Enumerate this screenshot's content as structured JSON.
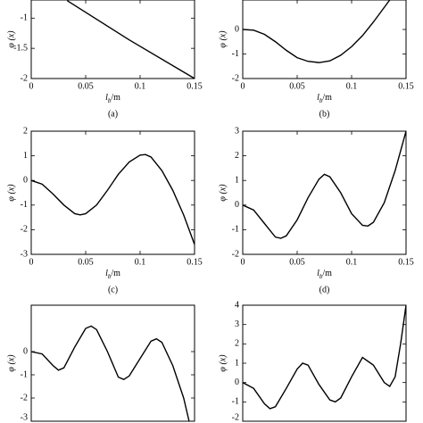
{
  "chart_data": [
    {
      "type": "line",
      "caption": "(a)",
      "ylabel": "φ (x)",
      "xlabel": "l",
      "xlabel_sub": "b",
      "xlabel_unit": "/m",
      "x": [
        0.033,
        0.09,
        0.15
      ],
      "values": [
        -0.71,
        -1.36,
        -2
      ],
      "xlim": [
        0,
        0.15
      ],
      "ylim": [
        -2,
        -0.7
      ],
      "xticks": [
        0,
        0.05,
        0.1,
        0.15
      ],
      "yticks": [
        -2,
        -1.5,
        -1
      ],
      "color": "#000000"
    },
    {
      "type": "line",
      "caption": "(b)",
      "ylabel": "φ (x)",
      "xlabel": "l",
      "xlabel_sub": "b",
      "xlabel_unit": "/m",
      "x": [
        0,
        0.01,
        0.02,
        0.03,
        0.04,
        0.05,
        0.06,
        0.07,
        0.08,
        0.09,
        0.1,
        0.11,
        0.12,
        0.13,
        0.135
      ],
      "values": [
        0,
        -0.03,
        -0.2,
        -0.5,
        -0.85,
        -1.15,
        -1.3,
        -1.35,
        -1.28,
        -1.05,
        -0.7,
        -0.25,
        0.3,
        0.9,
        1.2
      ],
      "xlim": [
        0,
        0.15
      ],
      "ylim": [
        -2,
        1.2
      ],
      "xticks": [
        0,
        0.05,
        0.1,
        0.15
      ],
      "yticks": [
        -2,
        -1,
        0
      ],
      "color": "#000000"
    },
    {
      "type": "line",
      "caption": "(c)",
      "ylabel": "φ (x)",
      "xlabel": "l",
      "xlabel_sub": "b",
      "xlabel_unit": "/m",
      "x": [
        0,
        0.01,
        0.02,
        0.03,
        0.04,
        0.045,
        0.05,
        0.06,
        0.07,
        0.08,
        0.09,
        0.1,
        0.105,
        0.11,
        0.12,
        0.13,
        0.14,
        0.15
      ],
      "values": [
        0,
        -0.15,
        -0.55,
        -1.0,
        -1.35,
        -1.4,
        -1.35,
        -1.0,
        -0.4,
        0.25,
        0.75,
        1.03,
        1.05,
        0.95,
        0.4,
        -0.4,
        -1.4,
        -2.6
      ],
      "xlim": [
        0,
        0.15
      ],
      "ylim": [
        -3,
        2
      ],
      "xticks": [
        0,
        0.05,
        0.1,
        0.15
      ],
      "yticks": [
        -3,
        -2,
        -1,
        0,
        1,
        2
      ],
      "color": "#000000"
    },
    {
      "type": "line",
      "caption": "(d)",
      "ylabel": "φ (x)",
      "xlabel": "l",
      "xlabel_sub": "b",
      "xlabel_unit": "/m",
      "x": [
        0,
        0.01,
        0.02,
        0.03,
        0.035,
        0.04,
        0.05,
        0.06,
        0.07,
        0.075,
        0.08,
        0.09,
        0.1,
        0.11,
        0.115,
        0.12,
        0.13,
        0.14,
        0.15
      ],
      "values": [
        0,
        -0.2,
        -0.75,
        -1.3,
        -1.35,
        -1.25,
        -0.6,
        0.3,
        1.05,
        1.25,
        1.15,
        0.5,
        -0.35,
        -0.82,
        -0.85,
        -0.7,
        0.1,
        1.4,
        3
      ],
      "xlim": [
        0,
        0.15
      ],
      "ylim": [
        -2,
        3
      ],
      "xticks": [
        0,
        0.05,
        0.1,
        0.15
      ],
      "yticks": [
        -2,
        -1,
        0,
        1,
        2,
        3
      ],
      "color": "#000000"
    },
    {
      "type": "line",
      "ylabel": "φ (x)",
      "x": [
        0,
        0.01,
        0.02,
        0.025,
        0.03,
        0.04,
        0.05,
        0.055,
        0.06,
        0.07,
        0.08,
        0.085,
        0.09,
        0.1,
        0.11,
        0.115,
        0.12,
        0.13,
        0.14,
        0.145
      ],
      "values": [
        0,
        -0.1,
        -0.6,
        -0.8,
        -0.7,
        0.2,
        1.0,
        1.1,
        0.95,
        0.0,
        -1.1,
        -1.2,
        -1.05,
        -0.3,
        0.45,
        0.55,
        0.4,
        -0.6,
        -2.0,
        -3
      ],
      "xlim": [
        0,
        0.15
      ],
      "ylim": [
        -3,
        2
      ],
      "yticks": [
        -3,
        -2,
        -1,
        0
      ],
      "color": "#000000"
    },
    {
      "type": "line",
      "ylabel": "φ (x)",
      "x": [
        0,
        0.01,
        0.02,
        0.025,
        0.03,
        0.04,
        0.05,
        0.055,
        0.06,
        0.07,
        0.08,
        0.085,
        0.09,
        0.1,
        0.11,
        0.12,
        0.13,
        0.135,
        0.14,
        0.145,
        0.15
      ],
      "values": [
        0,
        -0.3,
        -1.1,
        -1.35,
        -1.25,
        -0.3,
        0.7,
        1.0,
        0.9,
        -0.1,
        -0.9,
        -1.0,
        -0.8,
        0.3,
        1.3,
        0.9,
        0.0,
        -0.2,
        0.3,
        2.0,
        4
      ],
      "xlim": [
        0,
        0.15
      ],
      "ylim": [
        -2,
        4
      ],
      "yticks": [
        -2,
        -1,
        0,
        1,
        2,
        3,
        4
      ],
      "color": "#000000"
    }
  ]
}
